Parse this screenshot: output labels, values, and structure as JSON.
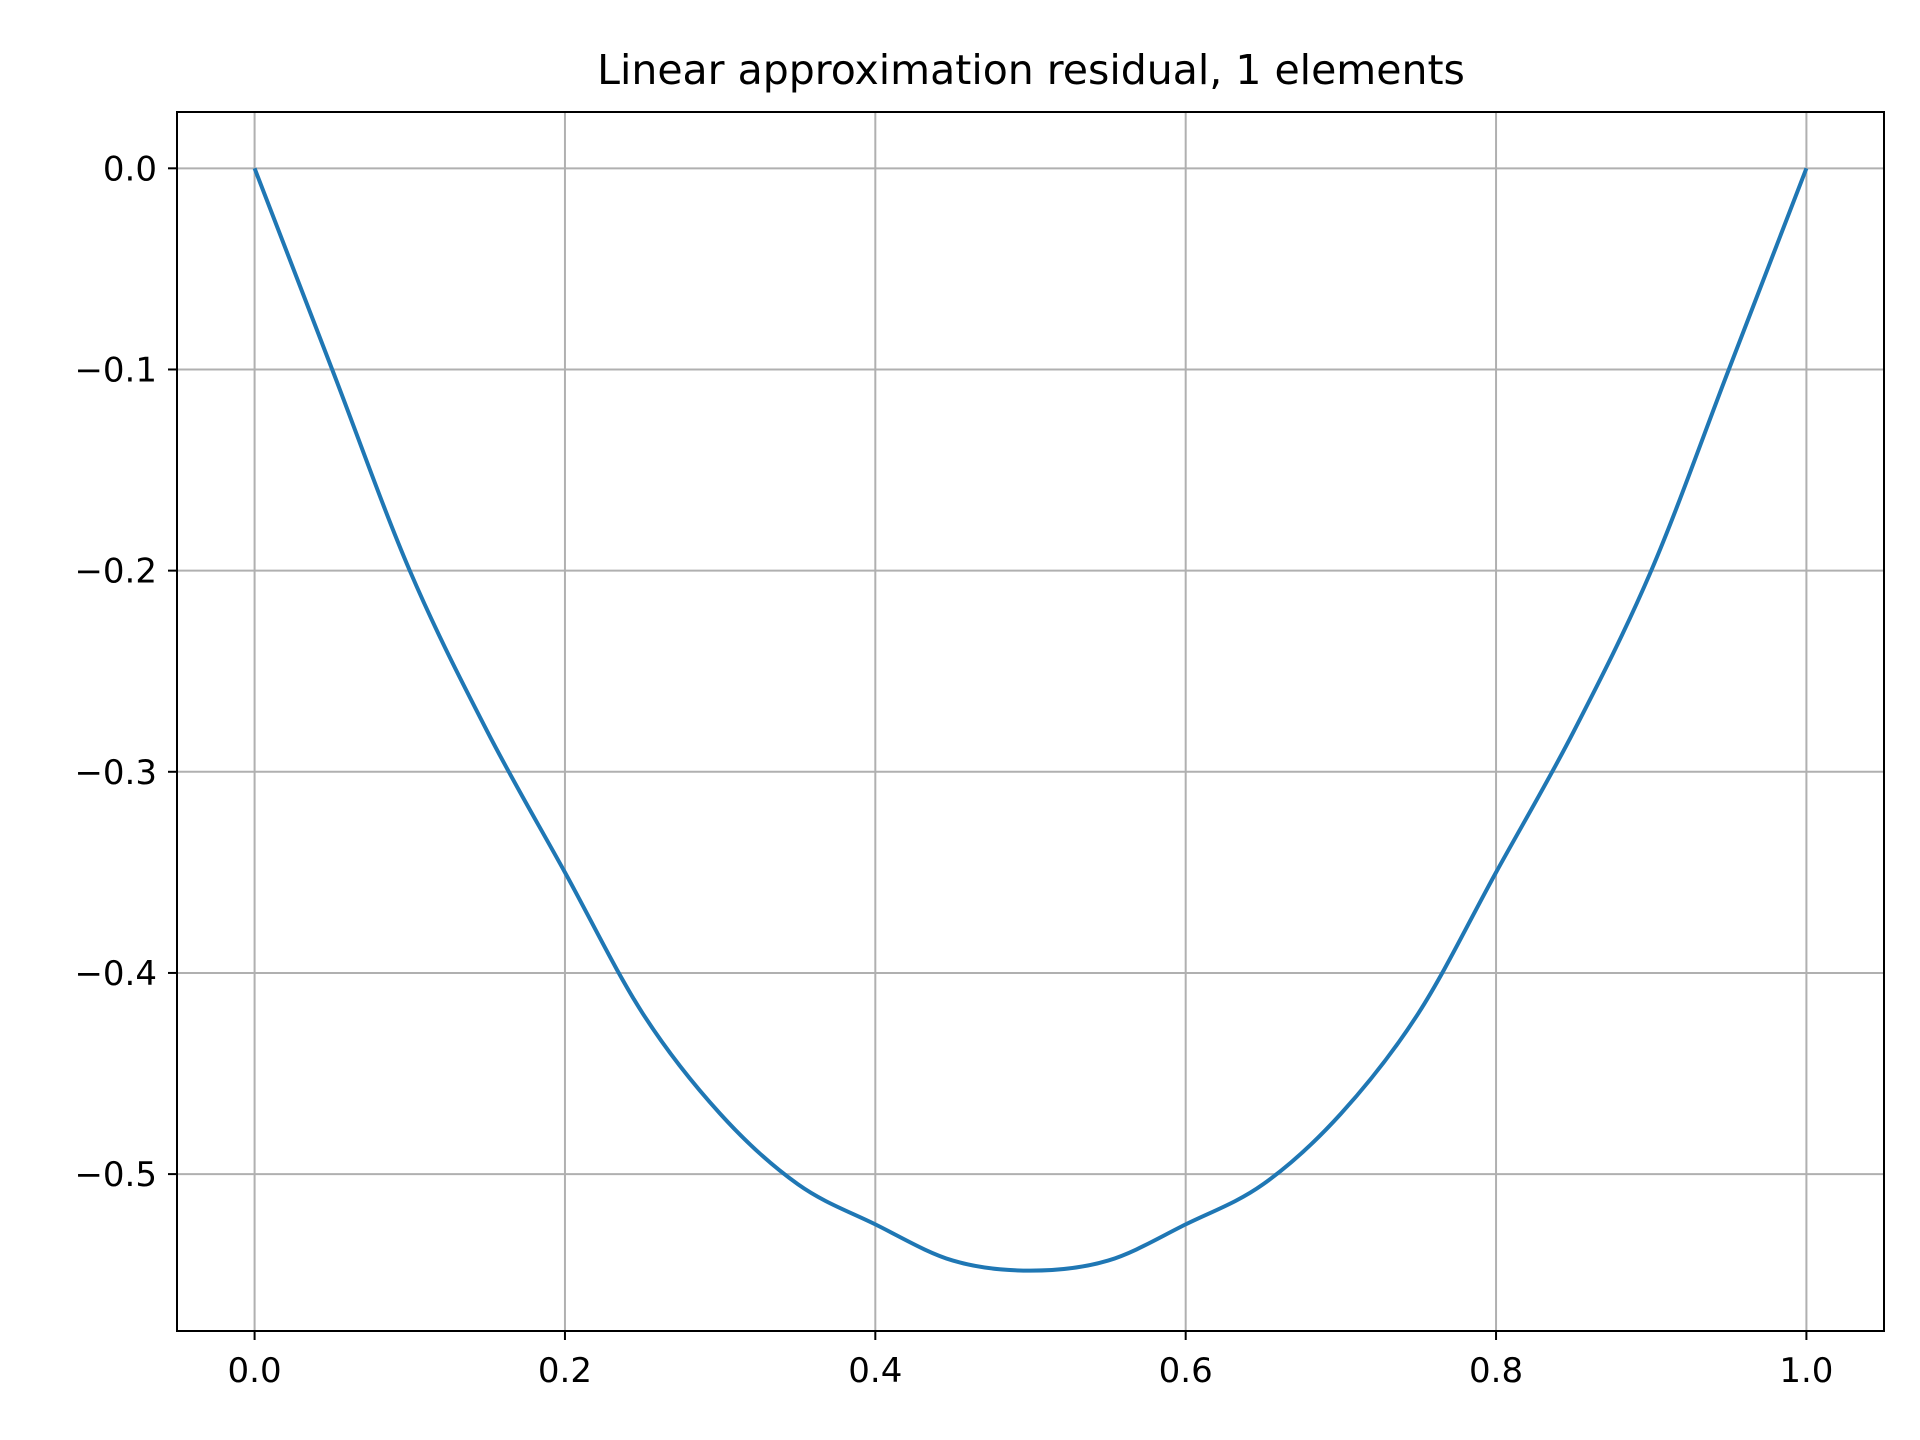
{
  "chart_data": {
    "type": "line",
    "title": "Linear approximation residual, 1 elements",
    "xlabel": "",
    "ylabel": "",
    "xlim": [
      -0.05,
      1.05
    ],
    "ylim": [
      -0.578,
      0.028
    ],
    "grid": true,
    "x_ticks": [
      0.0,
      0.2,
      0.4,
      0.6,
      0.8,
      1.0
    ],
    "x_tick_labels": [
      "0.0",
      "0.2",
      "0.4",
      "0.6",
      "0.8",
      "1.0"
    ],
    "y_ticks": [
      0.0,
      -0.1,
      -0.2,
      -0.3,
      -0.4,
      -0.5
    ],
    "y_tick_labels": [
      "0.0",
      "−0.1",
      "−0.2",
      "−0.3",
      "−0.4",
      "−0.5"
    ],
    "series": [
      {
        "color": "#1f77b4",
        "x": [
          0.0,
          0.05,
          0.1,
          0.15,
          0.2,
          0.25,
          0.3,
          0.35,
          0.4,
          0.45,
          0.5,
          0.55,
          0.6,
          0.65,
          0.7,
          0.75,
          0.8,
          0.85,
          0.9,
          0.95,
          1.0
        ],
        "y": [
          0.0,
          -0.1,
          -0.2,
          -0.28,
          -0.35,
          -0.42,
          -0.47,
          -0.505,
          -0.525,
          -0.543,
          -0.548,
          -0.543,
          -0.525,
          -0.505,
          -0.47,
          -0.42,
          -0.35,
          -0.28,
          -0.2,
          -0.1,
          0.0
        ]
      }
    ]
  }
}
